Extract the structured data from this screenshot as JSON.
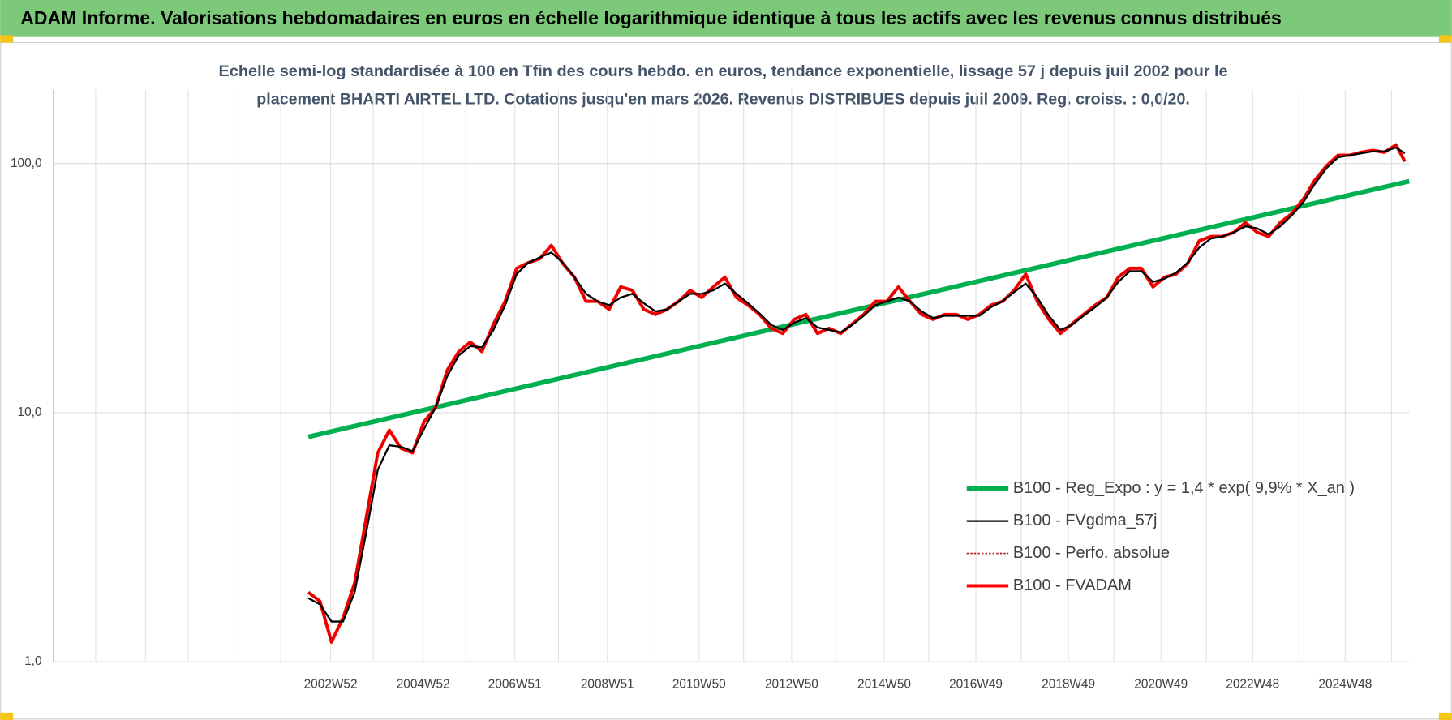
{
  "chart_data": {
    "type": "line",
    "title": "ADAM Informe. Valorisations hebdomadaires en euros en échelle logarithmique identique à tous les actifs avec les revenus connus distribués",
    "subtitle": [
      "Echelle semi-log standardisée à 100 en Tfin des cours hebdo. en euros, tendance exponentielle, lissage 57 j depuis juil 2002 pour le",
      "placement BHARTI AIRTEL LTD. Cotations jusqu'en mars 2026. Revenus DISTRIBUES depuis juil 2009. Reg. croiss. : 0,0/20."
    ],
    "log_scale": true,
    "grid": true,
    "legend": "lower right",
    "xlim": [
      "1997W01",
      "2026W16"
    ],
    "xticks": [
      "2002W52",
      "2004W52",
      "2006W51",
      "2008W51",
      "2010W50",
      "2012W50",
      "2014W50",
      "2016W49",
      "2018W49",
      "2020W49",
      "2022W48",
      "2024W48"
    ],
    "ylim": [
      1,
      198
    ],
    "yticks": [
      {
        "value": 1,
        "label": "1,0"
      },
      {
        "value": 10,
        "label": "10,0"
      },
      {
        "value": 100,
        "label": "100,0"
      }
    ],
    "x": [
      "2002W27",
      "2002W40",
      "2003W01",
      "2003W14",
      "2003W27",
      "2003W40",
      "2004W01",
      "2004W14",
      "2004W27",
      "2004W40",
      "2005W01",
      "2005W14",
      "2005W27",
      "2005W40",
      "2006W01",
      "2006W14",
      "2006W27",
      "2006W40",
      "2007W01",
      "2007W14",
      "2007W27",
      "2007W40",
      "2008W01",
      "2008W14",
      "2008W27",
      "2008W40",
      "2009W01",
      "2009W14",
      "2009W27",
      "2009W40",
      "2010W01",
      "2010W14",
      "2010W27",
      "2010W40",
      "2011W01",
      "2011W14",
      "2011W27",
      "2011W40",
      "2012W01",
      "2012W14",
      "2012W27",
      "2012W40",
      "2013W01",
      "2013W14",
      "2013W27",
      "2013W40",
      "2014W01",
      "2014W14",
      "2014W27",
      "2014W40",
      "2015W01",
      "2015W14",
      "2015W27",
      "2015W40",
      "2016W01",
      "2016W14",
      "2016W27",
      "2016W40",
      "2017W01",
      "2017W14",
      "2017W27",
      "2017W40",
      "2018W01",
      "2018W14",
      "2018W27",
      "2018W40",
      "2019W01",
      "2019W14",
      "2019W27",
      "2019W40",
      "2020W01",
      "2020W14",
      "2020W27",
      "2020W40",
      "2021W01",
      "2021W14",
      "2021W27",
      "2021W40",
      "2022W01",
      "2022W14",
      "2022W27",
      "2022W40",
      "2023W01",
      "2023W14",
      "2023W27",
      "2023W40",
      "2024W01",
      "2024W14",
      "2024W27",
      "2024W40",
      "2025W01",
      "2025W14",
      "2025W27",
      "2025W40",
      "2026W01",
      "2026W11"
    ],
    "series": [
      {
        "name": "B100 - Reg_Expo : y = 1,4 * exp( 9,9% *  X_an )",
        "color": "#00b050",
        "width": 5,
        "x": [
          "2002W27",
          "2026W16"
        ],
        "values": [
          8.0,
          85
        ]
      },
      {
        "name": "B100 - FVgdma_57j",
        "color": "#000000",
        "width": 2,
        "values": [
          1.8,
          1.7,
          1.45,
          1.45,
          1.9,
          3.3,
          5.9,
          7.4,
          7.3,
          7.0,
          8.6,
          10.5,
          14,
          17,
          18.5,
          18.3,
          21.5,
          27,
          36,
          40,
          42,
          44,
          40,
          35,
          30,
          28,
          27,
          29,
          30,
          27.5,
          25.5,
          26,
          28,
          30,
          30,
          31,
          33,
          30,
          27.5,
          25,
          22.5,
          21.5,
          23,
          24,
          22,
          21.5,
          21,
          22.5,
          24.5,
          27,
          28,
          29,
          28,
          25.5,
          24,
          24.5,
          24.5,
          24.5,
          24.5,
          26.5,
          28,
          30.5,
          33,
          29,
          24.5,
          21.5,
          22.5,
          24.5,
          26.5,
          29,
          33.5,
          37,
          37,
          33.5,
          34.5,
          36.5,
          40,
          46,
          50,
          51,
          53,
          56,
          55,
          52,
          56,
          62,
          70,
          83,
          96,
          106,
          108,
          110,
          112,
          112,
          116,
          110
        ]
      },
      {
        "name": "B100 - Perfo. absolue",
        "color": "#c00000",
        "width": 1.5,
        "dash": "2 2",
        "values": [
          1.9,
          1.75,
          1.2,
          1.5,
          2.07,
          3.77,
          6.9,
          8.5,
          7.2,
          6.9,
          9.2,
          10.5,
          14.8,
          17.6,
          19.2,
          17.6,
          22.7,
          28,
          38,
          40,
          41.5,
          47,
          39.7,
          35,
          28,
          28,
          26,
          32,
          31,
          26,
          24.8,
          26,
          28,
          31,
          29,
          32,
          35,
          29,
          27,
          24.8,
          21.8,
          20.8,
          23.7,
          24.8,
          20.8,
          21.8,
          20.8,
          22.7,
          24.8,
          28,
          28,
          32,
          28,
          24.8,
          23.7,
          24.8,
          24.8,
          23.7,
          24.8,
          27,
          28,
          31,
          36,
          28,
          23.7,
          20.8,
          22.7,
          24.8,
          27,
          29,
          35,
          38,
          38,
          32,
          35,
          36,
          39.7,
          49,
          51,
          51,
          53,
          58,
          53,
          51,
          58,
          63,
          72,
          86,
          98,
          108,
          108,
          111,
          113,
          111,
          119,
          102
        ]
      },
      {
        "name": "B100 - FVADAM",
        "color": "#ff0000",
        "width": 3.5,
        "values": [
          1.9,
          1.75,
          1.2,
          1.5,
          2.07,
          3.77,
          6.9,
          8.5,
          7.2,
          6.9,
          9.2,
          10.5,
          14.8,
          17.6,
          19.2,
          17.6,
          22.7,
          28,
          38,
          40,
          41.5,
          47,
          39.7,
          35,
          28,
          28,
          26,
          32,
          31,
          26,
          24.8,
          26,
          28,
          31,
          29,
          32,
          35,
          29,
          27,
          24.8,
          21.8,
          20.8,
          23.7,
          24.8,
          20.8,
          21.8,
          20.8,
          22.7,
          24.8,
          28,
          28,
          32,
          28,
          24.8,
          23.7,
          24.8,
          24.8,
          23.7,
          24.8,
          27,
          28,
          31,
          36,
          28,
          23.7,
          20.8,
          22.7,
          24.8,
          27,
          29,
          35,
          38,
          38,
          32,
          35,
          36,
          39.7,
          49,
          51,
          51,
          53,
          58,
          53,
          51,
          58,
          63,
          72,
          86,
          98,
          108,
          108,
          111,
          113,
          111,
          119,
          102
        ]
      }
    ]
  }
}
